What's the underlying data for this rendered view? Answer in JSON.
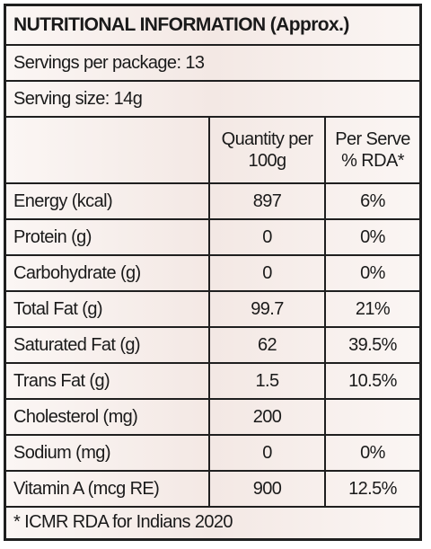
{
  "title": "NUTRITIONAL INFORMATION (Approx.)",
  "servings": "Servings per package: 13",
  "serving_size": "Serving size: 14g",
  "table": {
    "header": [
      "Quantity per 100g",
      "Per Serve % RDA*"
    ],
    "rows": [
      [
        "Energy (kcal)",
        "897",
        "6%"
      ],
      [
        "Protein (g)",
        "0",
        "0%"
      ],
      [
        "Carbohydrate (g)",
        "0",
        "0%"
      ],
      [
        "Total Fat (g)",
        "99.7",
        "21%"
      ],
      [
        "Saturated Fat (g)",
        "62",
        "39.5%"
      ],
      [
        "Trans Fat (g)",
        "1.5",
        "10.5%"
      ],
      [
        "Cholesterol (mg)",
        "200",
        null
      ],
      [
        "Sodium (mg)",
        "0",
        "0%"
      ],
      [
        "Vitamin A (mcg RE)",
        "900",
        "12.5%"
      ]
    ]
  },
  "footnote": "* ICMR RDA for Indians 2020"
}
